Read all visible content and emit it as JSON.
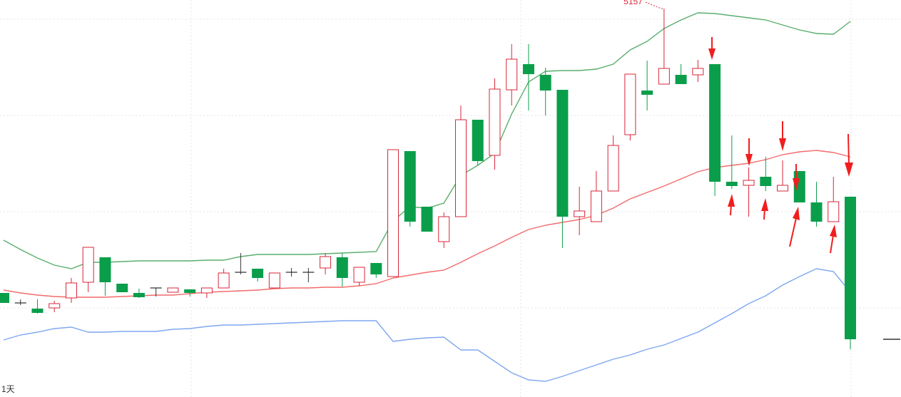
{
  "chart_data": {
    "type": "candlestick",
    "period": "1天",
    "categories": [
      null,
      null,
      null,
      null,
      null,
      null,
      null,
      null,
      null,
      null,
      null,
      null,
      null,
      null,
      null,
      null,
      null,
      null,
      null,
      null,
      null,
      null,
      null,
      null,
      null,
      null,
      null,
      null,
      null,
      null,
      null,
      null,
      null,
      null,
      null,
      null,
      null,
      null,
      null,
      null,
      null,
      null,
      null,
      null,
      null,
      null,
      null,
      null,
      null,
      null,
      null
    ],
    "open": [
      4758,
      4744,
      4736,
      4737,
      4751,
      4773,
      4808,
      4771,
      4758,
      4765,
      4759,
      4763,
      4758,
      4765,
      4787,
      4792,
      4765,
      4787,
      4787,
      4793,
      4808,
      4773,
      4800,
      4781,
      4957,
      4879,
      4830,
      4865,
      5001,
      4951,
      5043,
      5079,
      5064,
      5043,
      4865,
      4858,
      4901,
      4980,
      5042,
      5051,
      5064,
      5064,
      5079,
      4914,
      4909,
      4921,
      4901,
      4929,
      4885,
      4858,
      4893
    ],
    "high": [
      4758,
      4749,
      4749,
      4747,
      4779,
      4822,
      4808,
      4771,
      4764,
      4765,
      4765,
      4763,
      4765,
      4792,
      4814,
      4792,
      4786,
      4793,
      4793,
      4814,
      4814,
      4794,
      4800,
      4959,
      4957,
      4879,
      4871,
      5021,
      5001,
      5059,
      5107,
      5107,
      5074,
      5043,
      4907,
      4929,
      4979,
      5065,
      5084,
      5157,
      5079,
      5085,
      5079,
      4979,
      4934,
      4949,
      4944,
      4929,
      4914,
      4921,
      4893
    ],
    "low": [
      4744,
      4741,
      4729,
      4731,
      4744,
      4759,
      4754,
      4759,
      4751,
      4753,
      4759,
      4753,
      4751,
      4765,
      4784,
      4774,
      4765,
      4781,
      4773,
      4784,
      4767,
      4768,
      4779,
      4781,
      4851,
      4844,
      4821,
      4865,
      4937,
      4931,
      5021,
      5014,
      5007,
      4821,
      4839,
      4858,
      4901,
      4972,
      5014,
      5051,
      5051,
      5054,
      4894,
      4904,
      4865,
      4901,
      4901,
      4885,
      4851,
      4858,
      4679
    ],
    "close": [
      4744,
      4744,
      4730,
      4743,
      4772,
      4822,
      4773,
      4759,
      4752,
      4765,
      4765,
      4758,
      4765,
      4786,
      4787,
      4779,
      4786,
      4787,
      4787,
      4809,
      4779,
      4794,
      4784,
      4959,
      4858,
      4844,
      4865,
      5001,
      4943,
      5044,
      5086,
      5065,
      5042,
      4865,
      4873,
      4901,
      4965,
      5065,
      5036,
      5073,
      5051,
      5073,
      4914,
      4908,
      4916,
      4908,
      4909,
      4885,
      4858,
      4886,
      4693
    ],
    "up_color": "#d9263a",
    "down_color": "#0a9e4b",
    "flat_color": "#333333",
    "bands": [
      {
        "color": "#5aae6e",
        "values": [
          4832,
          4819,
          4807,
          4797,
          4792,
          4801,
          4801,
          4802,
          4803,
          4803,
          4803,
          4803,
          4804,
          4804,
          4809,
          4812,
          4812,
          4812,
          4812,
          4813,
          4814,
          4815,
          4816,
          4859,
          4879,
          4877,
          4884,
          4923,
          4937,
          4954,
          5009,
          5054,
          5069,
          5070,
          5070,
          5072,
          5079,
          5099,
          5111,
          5129,
          5141,
          5151,
          5150,
          5147,
          5144,
          5141,
          5134,
          5127,
          5122,
          5121,
          5139
        ]
      },
      {
        "color": "#f26b6b",
        "values": [
          4762,
          4758,
          4755,
          4753,
          4752,
          4752,
          4752,
          4753,
          4754,
          4755,
          4755,
          4757,
          4759,
          4760,
          4761,
          4762,
          4764,
          4765,
          4765,
          4766,
          4766,
          4768,
          4771,
          4779,
          4783,
          4787,
          4790,
          4801,
          4813,
          4824,
          4836,
          4847,
          4853,
          4857,
          4861,
          4867,
          4877,
          4890,
          4899,
          4908,
          4918,
          4928,
          4934,
          4937,
          4940,
          4945,
          4952,
          4956,
          4958,
          4955,
          4949
        ]
      },
      {
        "color": "#7ea7f0",
        "values": [
          4692,
          4699,
          4703,
          4708,
          4710,
          4703,
          4703,
          4704,
          4704,
          4704,
          4707,
          4708,
          4711,
          4713,
          4713,
          4714,
          4715,
          4716,
          4717,
          4718,
          4719,
          4719,
          4719,
          4690,
          4693,
          4695,
          4696,
          4678,
          4678,
          4662,
          4646,
          4636,
          4634,
          4641,
          4649,
          4657,
          4665,
          4671,
          4679,
          4685,
          4694,
          4703,
          4716,
          4729,
          4743,
          4754,
          4769,
          4781,
          4792,
          4788,
          4759
        ]
      }
    ],
    "ylim": [
      4612,
      5169
    ]
  }
}
